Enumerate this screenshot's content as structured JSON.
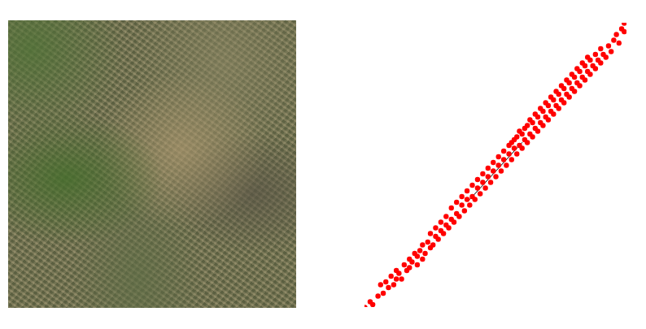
{
  "chart_data": {
    "type": "scatter",
    "xlim": [
      0,
      100
    ],
    "ylim": [
      0,
      100
    ],
    "xticks": [],
    "yticks": [],
    "tick_labels": false,
    "grid": false,
    "series": [
      {
        "type": "line",
        "color": "#000000",
        "line_style": "solid",
        "x": [
          40,
          60
        ],
        "y": [
          38,
          58
        ]
      },
      {
        "type": "scatter",
        "color": "#ff0000",
        "marker": "circle",
        "x": [
          0,
          2,
          3,
          5,
          6,
          7,
          8,
          9,
          10,
          11,
          12,
          12,
          13,
          14,
          15,
          16,
          17,
          17,
          18,
          19,
          20,
          20,
          21,
          22,
          22,
          23,
          24,
          25,
          25,
          26,
          27,
          27,
          28,
          29,
          29,
          30,
          31,
          31,
          32,
          33,
          33,
          34,
          35,
          35,
          36,
          37,
          37,
          38,
          39,
          39,
          40,
          41,
          41,
          42,
          43,
          43,
          44,
          45,
          45,
          46,
          47,
          47,
          48,
          49,
          49,
          50,
          51,
          51,
          52,
          53,
          53,
          54,
          55,
          55,
          56,
          56,
          57,
          57,
          58,
          58,
          59,
          59,
          60,
          60,
          61,
          61,
          62,
          62,
          63,
          63,
          64,
          64,
          65,
          65,
          66,
          66,
          67,
          67,
          68,
          68,
          69,
          69,
          70,
          70,
          71,
          71,
          72,
          72,
          73,
          73,
          74,
          74,
          75,
          75,
          76,
          76,
          77,
          77,
          78,
          78,
          79,
          79,
          80,
          80,
          81,
          81,
          82,
          82,
          83,
          83,
          84,
          84,
          85,
          85,
          86,
          86,
          87,
          88,
          88,
          89,
          90,
          90,
          91,
          92,
          93,
          94,
          95,
          96,
          97,
          98,
          99,
          99
        ],
        "y": [
          0,
          2,
          1,
          4,
          8,
          5,
          9,
          7,
          11,
          8,
          13,
          10,
          12,
          10,
          15,
          13,
          17,
          14,
          16,
          19,
          15,
          18,
          20,
          17,
          22,
          19,
          23,
          21,
          26,
          22,
          25,
          28,
          24,
          27,
          30,
          26,
          29,
          32,
          28,
          31,
          35,
          30,
          33,
          37,
          32,
          36,
          39,
          34,
          38,
          41,
          36,
          39,
          43,
          38,
          42,
          45,
          40,
          44,
          47,
          42,
          46,
          49,
          44,
          48,
          51,
          46,
          50,
          53,
          48,
          52,
          55,
          50,
          54,
          57,
          52,
          58,
          56,
          59,
          54,
          60,
          57,
          62,
          56,
          61,
          59,
          63,
          58,
          64,
          61,
          66,
          60,
          65,
          63,
          68,
          62,
          67,
          65,
          70,
          64,
          69,
          67,
          72,
          66,
          71,
          69,
          74,
          68,
          73,
          71,
          76,
          70,
          75,
          73,
          78,
          72,
          77,
          75,
          80,
          74,
          79,
          77,
          82,
          76,
          81,
          79,
          84,
          78,
          83,
          81,
          86,
          80,
          85,
          83,
          88,
          82,
          87,
          85,
          84,
          89,
          87,
          86,
          91,
          89,
          88,
          92,
          90,
          94,
          96,
          93,
          98,
          97,
          100
        ]
      }
    ]
  }
}
